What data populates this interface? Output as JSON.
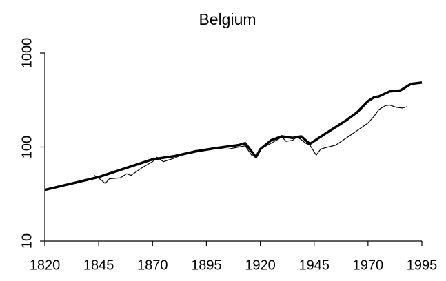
{
  "chart_data": {
    "type": "line",
    "title": "Belgium",
    "xlim": [
      1820,
      1995
    ],
    "xticks": [
      1820,
      1845,
      1870,
      1895,
      1920,
      1945,
      1970,
      1995
    ],
    "ylim": [
      10,
      1000
    ],
    "yticks": [
      10,
      100,
      1000
    ],
    "log_y": true,
    "grid": false,
    "series": [
      {
        "color": "#000000",
        "width": 3.5,
        "x": [
          1820,
          1845,
          1870,
          1880,
          1890,
          1900,
          1910,
          1913,
          1918,
          1920,
          1925,
          1930,
          1935,
          1939,
          1943,
          1950,
          1955,
          1960,
          1965,
          1970,
          1973,
          1975,
          1980,
          1985,
          1990,
          1995
        ],
        "values": [
          35,
          48,
          74,
          80,
          90,
          98,
          105,
          110,
          78,
          95,
          118,
          130,
          125,
          130,
          108,
          138,
          163,
          193,
          235,
          308,
          340,
          345,
          390,
          400,
          470,
          485
        ]
      },
      {
        "color": "#000000",
        "width": 1.2,
        "x": [
          1843,
          1846,
          1848,
          1850,
          1855,
          1858,
          1860,
          1865,
          1870,
          1872,
          1875,
          1880,
          1885,
          1890,
          1895,
          1900,
          1905,
          1910,
          1913,
          1916,
          1918,
          1920,
          1925,
          1928,
          1930,
          1932,
          1935,
          1937,
          1939,
          1941,
          1943,
          1946,
          1948,
          1950,
          1955,
          1960,
          1965,
          1970,
          1973,
          1975,
          1978,
          1980,
          1983,
          1986,
          1988
        ],
        "values": [
          50,
          45,
          41,
          46,
          47,
          52,
          50,
          60,
          70,
          78,
          70,
          76,
          85,
          92,
          95,
          96,
          95,
          100,
          103,
          82,
          78,
          95,
          110,
          120,
          128,
          115,
          118,
          128,
          120,
          110,
          105,
          82,
          95,
          98,
          105,
          125,
          150,
          180,
          215,
          250,
          275,
          280,
          265,
          260,
          268
        ]
      }
    ]
  }
}
